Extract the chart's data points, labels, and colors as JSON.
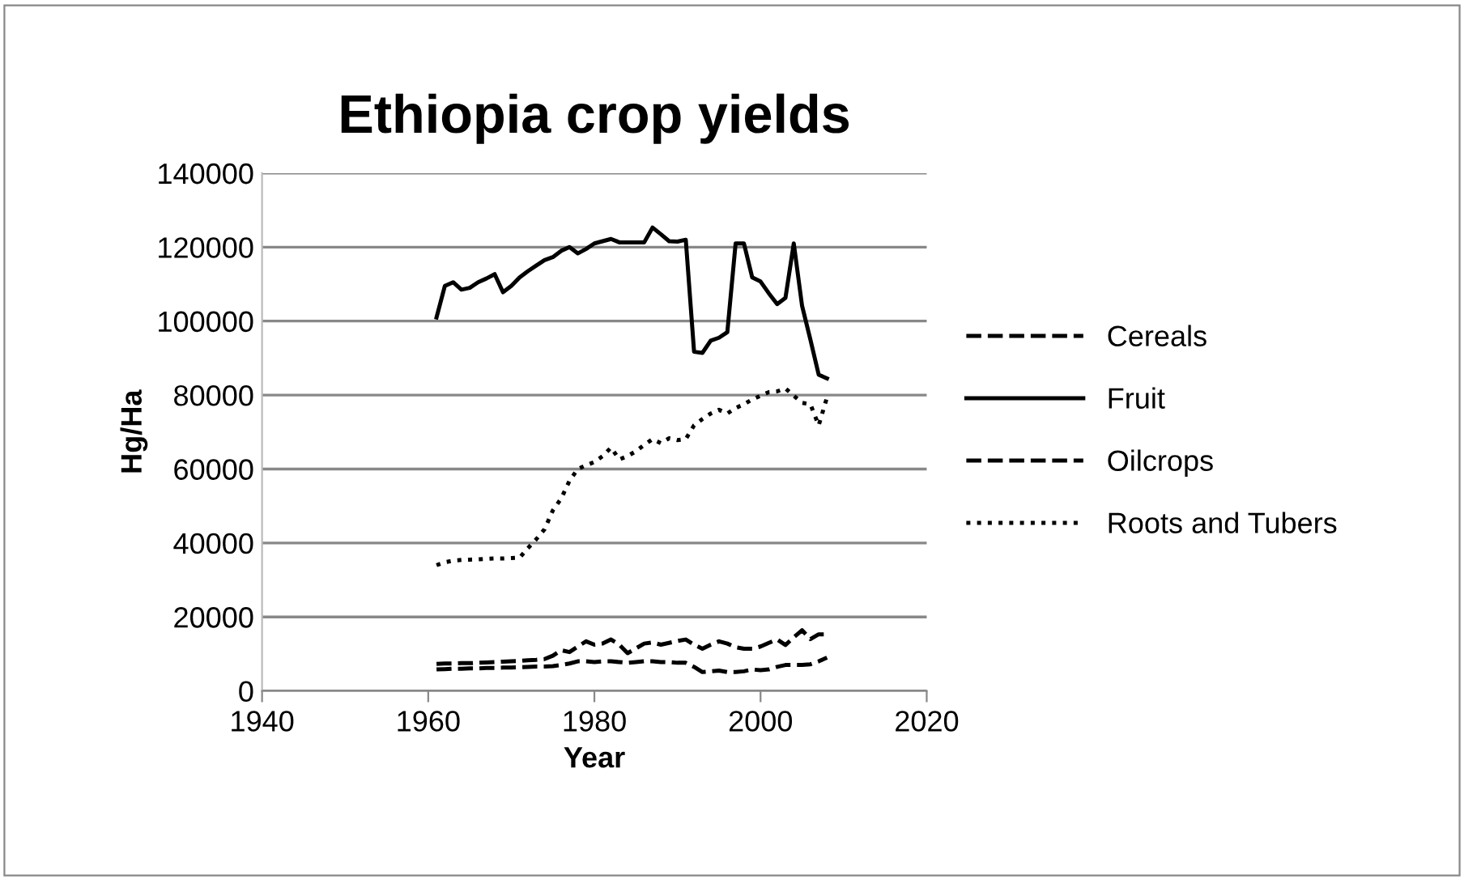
{
  "chart_data": {
    "type": "line",
    "title": "Ethiopia crop yields",
    "xlabel": "Year",
    "ylabel": "Hg/Ha",
    "x": [
      1961,
      1962,
      1963,
      1964,
      1965,
      1966,
      1967,
      1968,
      1969,
      1970,
      1971,
      1972,
      1973,
      1974,
      1975,
      1976,
      1977,
      1978,
      1979,
      1980,
      1981,
      1982,
      1983,
      1984,
      1985,
      1986,
      1987,
      1988,
      1989,
      1990,
      1991,
      1992,
      1993,
      1994,
      1995,
      1996,
      1997,
      1998,
      1999,
      2000,
      2001,
      2002,
      2003,
      2004,
      2005,
      2006,
      2007,
      2008
    ],
    "xlim": [
      1940,
      2020
    ],
    "xticks": [
      1940,
      1960,
      1980,
      2000,
      2020
    ],
    "ylim": [
      0,
      140000
    ],
    "yticks": [
      0,
      20000,
      40000,
      60000,
      80000,
      100000,
      120000,
      140000
    ],
    "grid": "y",
    "legend": "right",
    "marker": "none",
    "series": [
      {
        "name": "Cereals",
        "color": "#000000",
        "line_style": "dashed",
        "values": [
          7300,
          7400,
          7400,
          7500,
          7500,
          7600,
          7700,
          7800,
          7900,
          8000,
          8100,
          8300,
          8400,
          8600,
          9500,
          11000,
          10500,
          12000,
          13400,
          12500,
          12800,
          13900,
          12500,
          10200,
          11500,
          12800,
          13100,
          12500,
          13000,
          13500,
          13900,
          12500,
          11400,
          12500,
          13400,
          12800,
          11800,
          11400,
          11400,
          12000,
          13000,
          13900,
          12400,
          14500,
          16400,
          14000,
          15300,
          15300
        ]
      },
      {
        "name": "Fruit",
        "color": "#000000",
        "line_style": "solid",
        "values": [
          101000,
          109500,
          110500,
          108500,
          109000,
          110500,
          111500,
          112700,
          107800,
          109500,
          111800,
          113500,
          115000,
          116500,
          117300,
          119000,
          120000,
          118300,
          119500,
          121000,
          121600,
          122200,
          121300,
          121300,
          121300,
          121300,
          125300,
          123500,
          121600,
          121500,
          122000,
          91700,
          91400,
          94700,
          95500,
          97000,
          121000,
          121000,
          111800,
          110700,
          107500,
          104600,
          106300,
          121000,
          104100,
          95000,
          85500,
          84500
        ]
      },
      {
        "name": "Oilcrops",
        "color": "#000000",
        "line_style": "dashed",
        "values": [
          5800,
          5900,
          6000,
          6000,
          6100,
          6100,
          6200,
          6200,
          6300,
          6300,
          6400,
          6500,
          6600,
          6600,
          6700,
          7000,
          7400,
          8000,
          8000,
          7800,
          8000,
          8000,
          7800,
          7600,
          7800,
          8000,
          8000,
          7800,
          7800,
          7600,
          7600,
          6500,
          5100,
          5300,
          5500,
          5100,
          5100,
          5300,
          5800,
          5600,
          5800,
          6500,
          7000,
          7000,
          7000,
          7200,
          8000,
          9000
        ]
      },
      {
        "name": "Roots and Tubers",
        "color": "#000000",
        "line_style": "dotted",
        "values": [
          34000,
          34800,
          35200,
          35400,
          35500,
          35600,
          35700,
          35800,
          35800,
          35900,
          36000,
          38600,
          41000,
          43700,
          48800,
          52000,
          56800,
          60000,
          61000,
          61900,
          63500,
          65800,
          62600,
          63500,
          64800,
          66500,
          68100,
          67000,
          68300,
          67800,
          68100,
          71800,
          73500,
          75000,
          76000,
          75000,
          76500,
          77500,
          78800,
          79800,
          80800,
          81000,
          81800,
          79800,
          77900,
          77500,
          71800,
          79400
        ]
      }
    ]
  }
}
